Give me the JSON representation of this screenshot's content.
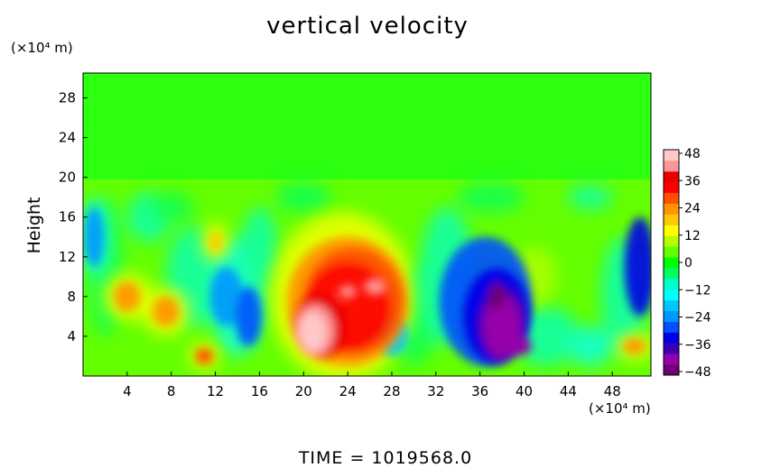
{
  "chart_data": {
    "type": "heatmap",
    "title": "vertical velocity",
    "ylabel": "Height",
    "x_unit_label": "(×10⁴ m)",
    "y_unit_label": "(×10⁴ m)",
    "x_ticks": [
      "4",
      "8",
      "12",
      "16",
      "20",
      "24",
      "28",
      "32",
      "36",
      "40",
      "44",
      "48"
    ],
    "y_ticks": [
      "4",
      "8",
      "12",
      "16",
      "20",
      "24",
      "28"
    ],
    "xlim": [
      0,
      51.5
    ],
    "ylim": [
      0,
      30.5
    ],
    "colorbar": {
      "ticks": [
        "48",
        "36",
        "24",
        "12",
        "0",
        "−12",
        "−24",
        "−36",
        "−48"
      ],
      "range": [
        -50,
        50
      ],
      "colors": [
        "#700070",
        "#9600aa",
        "#3c00b4",
        "#0000e6",
        "#0050ff",
        "#0096ff",
        "#00c8ff",
        "#00ffff",
        "#00ffc8",
        "#00ff64",
        "#00ff00",
        "#64ff00",
        "#b4ff00",
        "#ffff00",
        "#ffc800",
        "#ff9600",
        "#ff5000",
        "#ff0000",
        "#e60000",
        "#ff9696",
        "#ffc8c8"
      ]
    },
    "features": [
      {
        "x": 21,
        "y": 4.5,
        "value": 50
      },
      {
        "x": 24,
        "y": 7.5,
        "value": 38
      },
      {
        "x": 26.5,
        "y": 9,
        "value": 34
      },
      {
        "x": 38,
        "y": 5,
        "value": -48
      },
      {
        "x": 36.5,
        "y": 8,
        "value": -38
      },
      {
        "x": 4,
        "y": 8,
        "value": 26
      },
      {
        "x": 7.5,
        "y": 6.5,
        "value": 26
      },
      {
        "x": 11,
        "y": 2,
        "value": 30
      },
      {
        "x": 12,
        "y": 13.5,
        "value": 18
      },
      {
        "x": 50.5,
        "y": 11,
        "value": -34
      },
      {
        "x": 50,
        "y": 3,
        "value": 22
      },
      {
        "x": 13,
        "y": 8,
        "value": -22
      },
      {
        "x": 1,
        "y": 14,
        "value": -22
      }
    ]
  },
  "footer": {
    "time_readout": "TIME = 1019568.0"
  }
}
